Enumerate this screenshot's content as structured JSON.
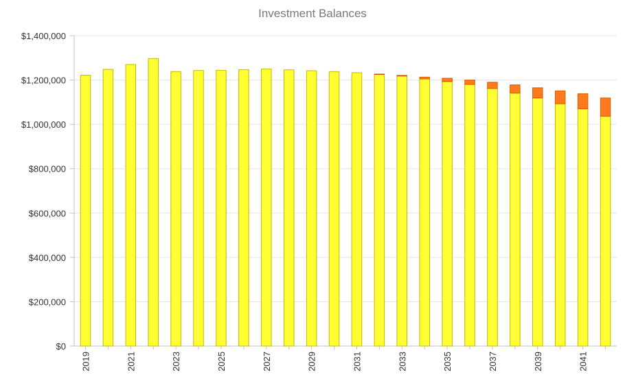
{
  "chart_data": {
    "type": "bar",
    "stacked": true,
    "title": "Investment Balances",
    "xlabel": "",
    "ylabel": "",
    "ylim": [
      0,
      1400000
    ],
    "yticks": [
      "$0",
      "$200,000",
      "$400,000",
      "$600,000",
      "$800,000",
      "$1,000,000",
      "$1,200,000",
      "$1,400,000"
    ],
    "categories": [
      "2019",
      "2020",
      "2021",
      "2022",
      "2023",
      "2024",
      "2025",
      "2026",
      "2027",
      "2028",
      "2029",
      "2030",
      "2031",
      "2032",
      "2033",
      "2034",
      "2035",
      "2036",
      "2037",
      "2038",
      "2039",
      "2040",
      "2041",
      "2042"
    ],
    "xtick_labels": [
      "2019",
      "",
      "2021",
      "",
      "2023",
      "",
      "2025",
      "",
      "2027",
      "",
      "2029",
      "",
      "2031",
      "",
      "2033",
      "",
      "2035",
      "",
      "2037",
      "",
      "2039",
      "",
      "2041",
      ""
    ],
    "grid": true,
    "legend": "none",
    "series": [
      {
        "color": "#ffff33",
        "stroke": "#c8b400",
        "values": [
          1222000,
          1248000,
          1270000,
          1297000,
          1238000,
          1243000,
          1244000,
          1247000,
          1250000,
          1246000,
          1242000,
          1238000,
          1233000,
          1225000,
          1218000,
          1205000,
          1193000,
          1180000,
          1162000,
          1141000,
          1119000,
          1093000,
          1070000,
          1037000
        ]
      },
      {
        "color": "#ff7a1f",
        "stroke": "#d95a00",
        "values": [
          0,
          0,
          0,
          0,
          0,
          0,
          0,
          0,
          0,
          0,
          0,
          0,
          0,
          2000,
          3000,
          8000,
          15000,
          20000,
          28000,
          37000,
          46000,
          58000,
          68000,
          82000
        ]
      }
    ]
  }
}
